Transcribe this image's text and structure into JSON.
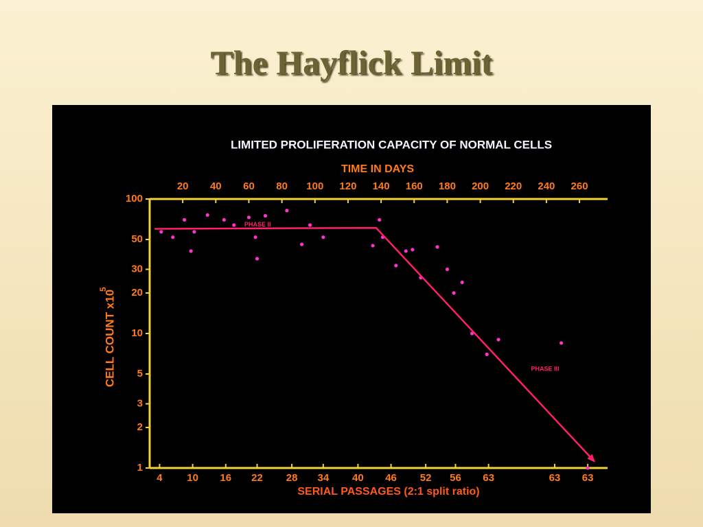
{
  "slide_title": "The Hayflick Limit",
  "chart_data": {
    "type": "scatter",
    "title": "LIMITED PROLIFERATION CAPACITY OF NORMAL CELLS",
    "x_label": "TIME IN DAYS",
    "x2_label": "SERIAL PASSAGES (2:1 split ratio)",
    "y_label": "CELL COUNT x10",
    "y_label_exponent": "5",
    "log_y": true,
    "xlim": [
      0,
      277
    ],
    "xticks": [
      20,
      40,
      60,
      80,
      100,
      120,
      140,
      160,
      180,
      200,
      220,
      240,
      260
    ],
    "x2ticks": [
      {
        "value": 6,
        "label": "4"
      },
      {
        "value": 26,
        "label": "10"
      },
      {
        "value": 46,
        "label": "16"
      },
      {
        "value": 65,
        "label": "22"
      },
      {
        "value": 86,
        "label": "28"
      },
      {
        "value": 105,
        "label": "34"
      },
      {
        "value": 126,
        "label": "40"
      },
      {
        "value": 146,
        "label": "46"
      },
      {
        "value": 167,
        "label": "52"
      },
      {
        "value": 185,
        "label": "56"
      },
      {
        "value": 205,
        "label": "63"
      },
      {
        "value": 245,
        "label": "63"
      },
      {
        "value": 265,
        "label": "63"
      }
    ],
    "ylim": [
      1,
      100
    ],
    "yticks": [
      1,
      2,
      3,
      5,
      10,
      20,
      30,
      50,
      100
    ],
    "annotations": [
      "PHASE II",
      "PHASE III"
    ],
    "series": [
      {
        "type": "scatter",
        "color": "#ff33cc",
        "x": [
          7,
          14,
          21,
          25,
          27,
          35,
          45,
          51,
          60,
          64,
          65,
          70,
          83,
          92,
          97,
          105,
          135,
          139,
          141,
          149,
          155,
          159,
          164,
          174,
          180,
          184,
          189,
          195,
          204,
          211,
          249,
          265
        ],
        "values": [
          57,
          52,
          70,
          41,
          57,
          76,
          70,
          64,
          73,
          52,
          36,
          75,
          82,
          46,
          64,
          52,
          45,
          70,
          52,
          32,
          41,
          42,
          26,
          44,
          30,
          20,
          24,
          10,
          7,
          9,
          8.5,
          1
        ]
      },
      {
        "type": "line",
        "color": "#ff1f6b",
        "x": [
          3,
          137,
          269
        ],
        "values": [
          60,
          61,
          1.12
        ]
      }
    ]
  }
}
